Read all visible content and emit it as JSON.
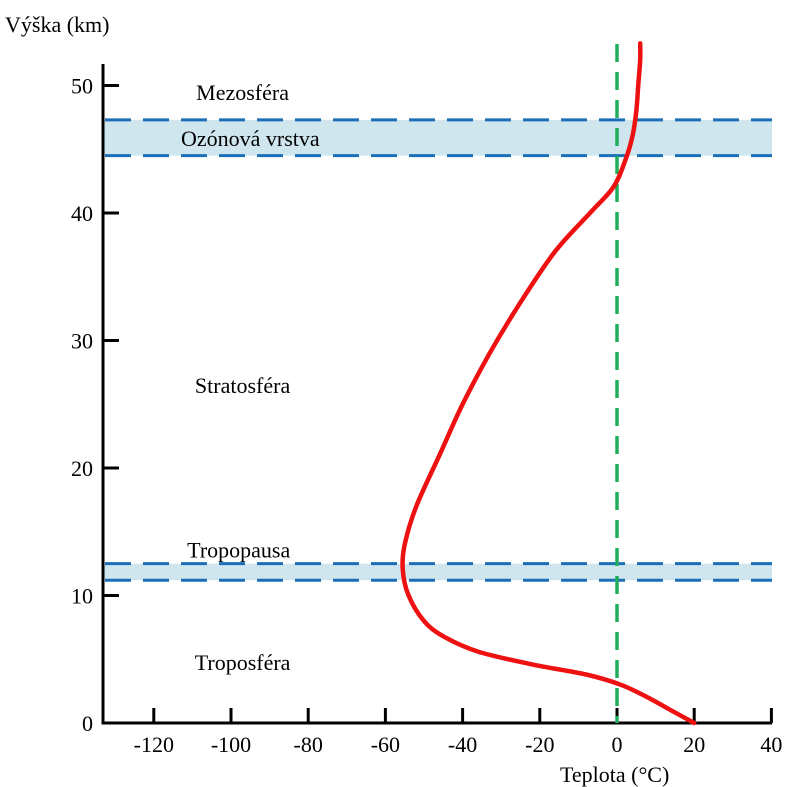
{
  "chart_data": {
    "type": "line",
    "title": "",
    "xlabel": "Teplota (°C)",
    "ylabel": "Výška (km)",
    "xlim": [
      -135,
      40
    ],
    "ylim": [
      0,
      53
    ],
    "x_ticks": [
      -120,
      -100,
      -80,
      -60,
      -40,
      -20,
      0,
      20,
      40
    ],
    "y_ticks": [
      0,
      10,
      20,
      30,
      40,
      50
    ],
    "grid": false,
    "bands": [
      {
        "name": "Ozónová vrstva",
        "y_from": 44.5,
        "y_to": 47.3,
        "color": "#cfe6ef",
        "line_color": "#1a6fb8"
      },
      {
        "name": "Tropopausa",
        "y_from": 11.2,
        "y_to": 12.5,
        "color": "#cfe6ef",
        "line_color": "#1a6fb8"
      }
    ],
    "region_labels": [
      {
        "text": "Mezosféra",
        "x": -97,
        "y": 49.5
      },
      {
        "text": "Ozónová vrstva",
        "x": -95,
        "y": 45.9
      },
      {
        "text": "Stratosféra",
        "x": -97,
        "y": 26.5
      },
      {
        "text": "Tropopausa",
        "x": -98,
        "y": 13.6
      },
      {
        "text": "Troposféra",
        "x": -97,
        "y": 4.8
      }
    ],
    "reference_line": {
      "x": 0,
      "color": "#1fae5a"
    },
    "series": [
      {
        "color": "#ee1111",
        "points": [
          [
            20,
            0
          ],
          [
            14,
            1
          ],
          [
            8,
            2
          ],
          [
            1,
            3
          ],
          [
            -8,
            3.8
          ],
          [
            -22,
            4.6
          ],
          [
            -36,
            5.6
          ],
          [
            -45,
            6.8
          ],
          [
            -50,
            8
          ],
          [
            -54,
            10
          ],
          [
            -55.5,
            12
          ],
          [
            -55,
            14
          ],
          [
            -52,
            17
          ],
          [
            -46,
            21
          ],
          [
            -40,
            25
          ],
          [
            -33,
            29
          ],
          [
            -25,
            33
          ],
          [
            -16,
            37
          ],
          [
            -7,
            40
          ],
          [
            -1,
            42
          ],
          [
            2,
            44
          ],
          [
            4,
            46
          ],
          [
            5,
            48
          ],
          [
            5.5,
            50
          ],
          [
            6,
            52
          ],
          [
            6,
            53.3
          ]
        ]
      }
    ]
  }
}
